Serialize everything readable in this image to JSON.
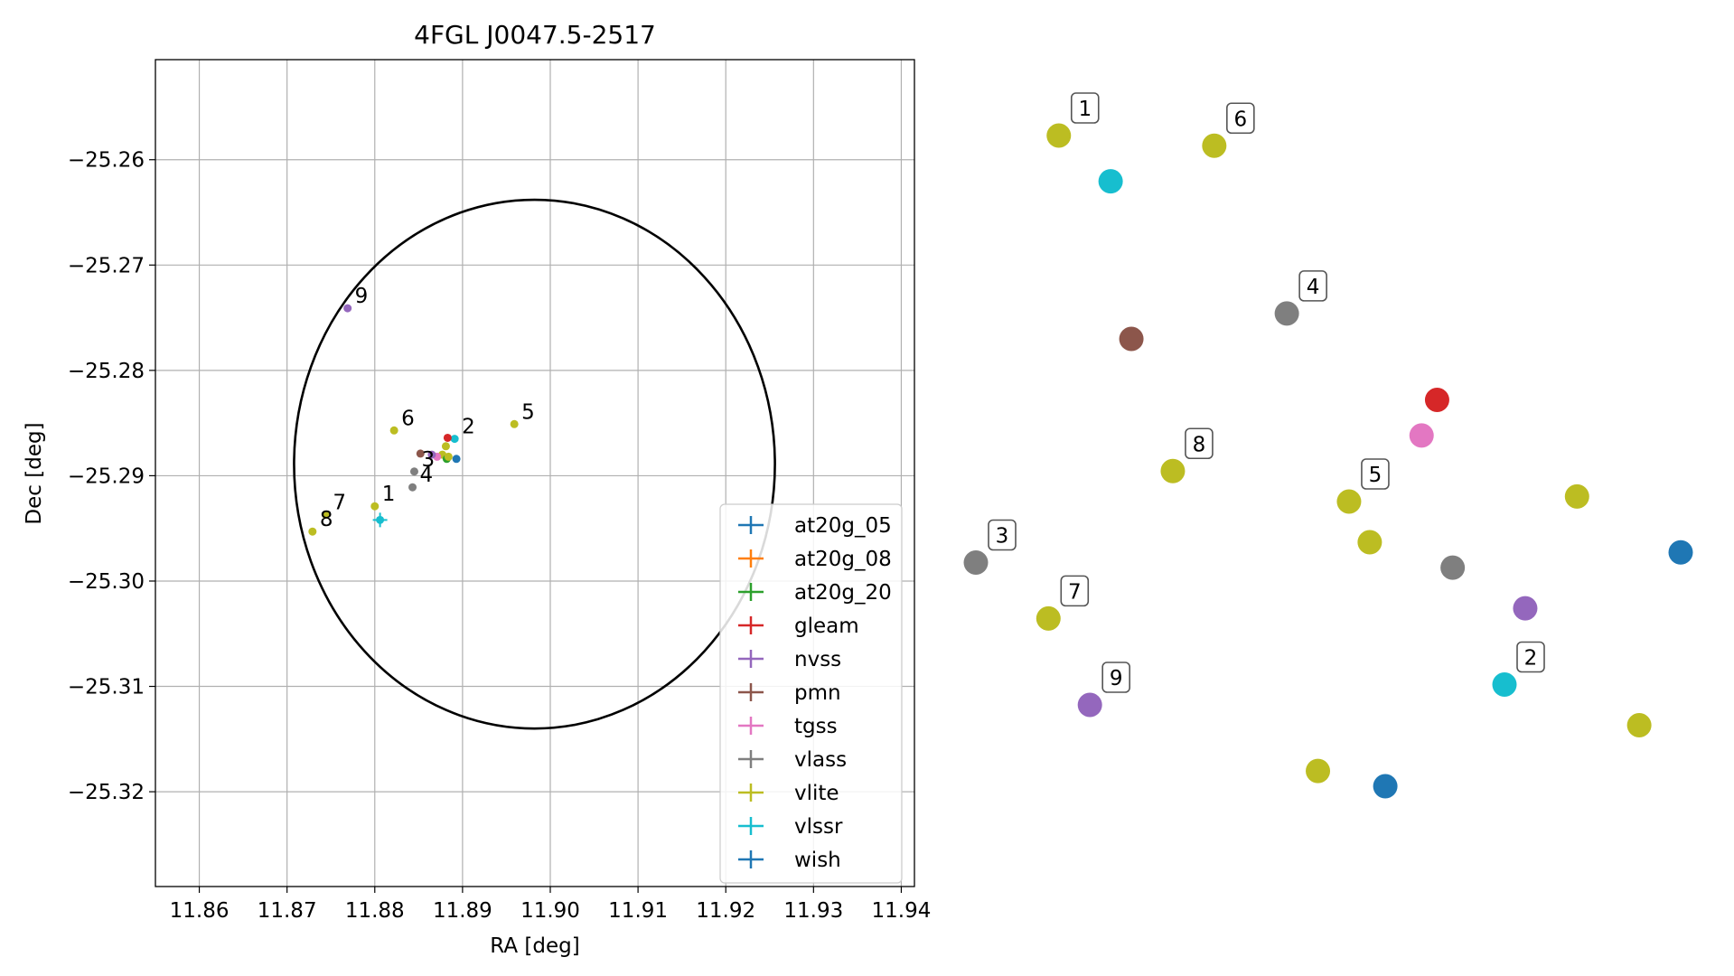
{
  "chart_data": [
    {
      "type": "scatter",
      "title": "4FGL J0047.5-2517",
      "xlabel": "RA [deg]",
      "ylabel": "Dec [deg]",
      "xlim": [
        11.855,
        11.9415
      ],
      "ylim": [
        -25.329,
        -25.2505
      ],
      "xticks": [
        11.86,
        11.87,
        11.88,
        11.89,
        11.9,
        11.91,
        11.92,
        11.93,
        11.94
      ],
      "xtick_labels": [
        "11.86",
        "11.87",
        "11.88",
        "11.89",
        "11.90",
        "11.91",
        "11.92",
        "11.93",
        "11.94"
      ],
      "yticks": [
        -25.26,
        -25.27,
        -25.28,
        -25.29,
        -25.3,
        -25.31,
        -25.32
      ],
      "ytick_labels": [
        "−25.26",
        "−25.27",
        "−25.28",
        "−25.29",
        "−25.30",
        "−25.31",
        "−25.32"
      ],
      "grid": true,
      "legend_position": "lower-right",
      "ellipse": {
        "center": [
          11.8982,
          -25.2889
        ],
        "semi_ra": 0.0274,
        "semi_dec": 0.0251
      },
      "legend": [
        {
          "name": "at20g_05",
          "color": "#1f77b4"
        },
        {
          "name": "at20g_08",
          "color": "#ff7f0e"
        },
        {
          "name": "at20g_20",
          "color": "#2ca02c"
        },
        {
          "name": "gleam",
          "color": "#d62728"
        },
        {
          "name": "nvss",
          "color": "#9467bd"
        },
        {
          "name": "pmn",
          "color": "#8c564b"
        },
        {
          "name": "tgss",
          "color": "#e377c2"
        },
        {
          "name": "vlass",
          "color": "#7f7f7f"
        },
        {
          "name": "vlite",
          "color": "#bcbd22"
        },
        {
          "name": "vlssr",
          "color": "#17becf"
        },
        {
          "name": "wish",
          "color": "#1f77b4"
        }
      ],
      "points": [
        {
          "x": 11.88,
          "y": -25.2929,
          "color": "#bcbd22",
          "label": "1"
        },
        {
          "x": 11.8806,
          "y": -25.2942,
          "color": "#17becf",
          "err": true,
          "label": ""
        },
        {
          "x": 11.8891,
          "y": -25.2865,
          "color": "#17becf",
          "label": "2"
        },
        {
          "x": 11.8883,
          "y": -25.2864,
          "color": "#d62728",
          "label": ""
        },
        {
          "x": 11.8881,
          "y": -25.2872,
          "color": "#bcbd22",
          "label": ""
        },
        {
          "x": 11.8877,
          "y": -25.288,
          "color": "#bcbd22",
          "label": ""
        },
        {
          "x": 11.8893,
          "y": -25.2884,
          "color": "#1f77b4",
          "label": ""
        },
        {
          "x": 11.8871,
          "y": -25.2882,
          "color": "#e377c2",
          "label": ""
        },
        {
          "x": 11.8865,
          "y": -25.288,
          "color": "#9467bd",
          "label": ""
        },
        {
          "x": 11.8852,
          "y": -25.2879,
          "color": "#8c564b",
          "label": ""
        },
        {
          "x": 11.8882,
          "y": -25.2884,
          "color": "#2ca02c",
          "label": ""
        },
        {
          "x": 11.8884,
          "y": -25.2882,
          "color": "#bcbd22",
          "label": ""
        },
        {
          "x": 11.8845,
          "y": -25.2896,
          "color": "#7f7f7f",
          "label": "3"
        },
        {
          "x": 11.8843,
          "y": -25.2911,
          "color": "#7f7f7f",
          "label": "4"
        },
        {
          "x": 11.8959,
          "y": -25.2851,
          "color": "#bcbd22",
          "label": "5"
        },
        {
          "x": 11.8822,
          "y": -25.2857,
          "color": "#bcbd22",
          "label": "6"
        },
        {
          "x": 11.8744,
          "y": -25.2937,
          "color": "#bcbd22",
          "label": "7"
        },
        {
          "x": 11.8729,
          "y": -25.2953,
          "color": "#bcbd22",
          "label": "8"
        },
        {
          "x": 11.8769,
          "y": -25.2741,
          "color": "#9467bd",
          "label": "9"
        }
      ]
    },
    {
      "type": "diagram",
      "nodes": [
        {
          "x": 1.0,
          "y": 3.0,
          "color": "#bcbd22",
          "label": ""
        },
        {
          "x": 2.3,
          "y": 0.2,
          "color": "#d62728",
          "label": ""
        },
        {
          "x": 0.0,
          "y": 7.5,
          "color": "#bcbd22",
          "label": ""
        },
        {
          "x": 5.0,
          "y": 2.1,
          "color": "#bcbd22",
          "label": ""
        },
        {
          "x": 2.0,
          "y": 0.9,
          "color": "#e377c2",
          "label": ""
        },
        {
          "x": 3.6,
          "y": 5.8,
          "color": "#17becf",
          "label": "2"
        },
        {
          "x": 6.2,
          "y": 6.6,
          "color": "#bcbd22",
          "label": ""
        },
        {
          "x": 4.0,
          "y": 4.3,
          "color": "#9467bd",
          "label": ""
        },
        {
          "x": 1.3,
          "y": 7.8,
          "color": "#1f77b4",
          "label": ""
        },
        {
          "x": 7.0,
          "y": 3.2,
          "color": "#1f77b4",
          "label": ""
        },
        {
          "x": 2.6,
          "y": 3.5,
          "color": "#7f7f7f",
          "label": ""
        },
        {
          "x": -3.6,
          "y": -1.0,
          "color": "#8c564b",
          "label": ""
        },
        {
          "x": -5.0,
          "y": -5.0,
          "color": "#bcbd22",
          "label": "1"
        },
        {
          "x": -4.0,
          "y": -4.1,
          "color": "#17becf",
          "label": ""
        },
        {
          "x": -5.2,
          "y": 4.5,
          "color": "#bcbd22",
          "label": "7"
        },
        {
          "x": -6.6,
          "y": 3.4,
          "color": "#7f7f7f",
          "label": "3"
        },
        {
          "x": -2.0,
          "y": -4.8,
          "color": "#bcbd22",
          "label": "6"
        },
        {
          "x": 0.6,
          "y": 2.2,
          "color": "#bcbd22",
          "label": "5"
        },
        {
          "x": -2.8,
          "y": 1.6,
          "color": "#bcbd22",
          "label": "8"
        },
        {
          "x": -0.6,
          "y": -1.5,
          "color": "#7f7f7f",
          "label": "4"
        },
        {
          "x": -4.4,
          "y": 6.2,
          "color": "#9467bd",
          "label": "9"
        }
      ],
      "edges": []
    }
  ]
}
